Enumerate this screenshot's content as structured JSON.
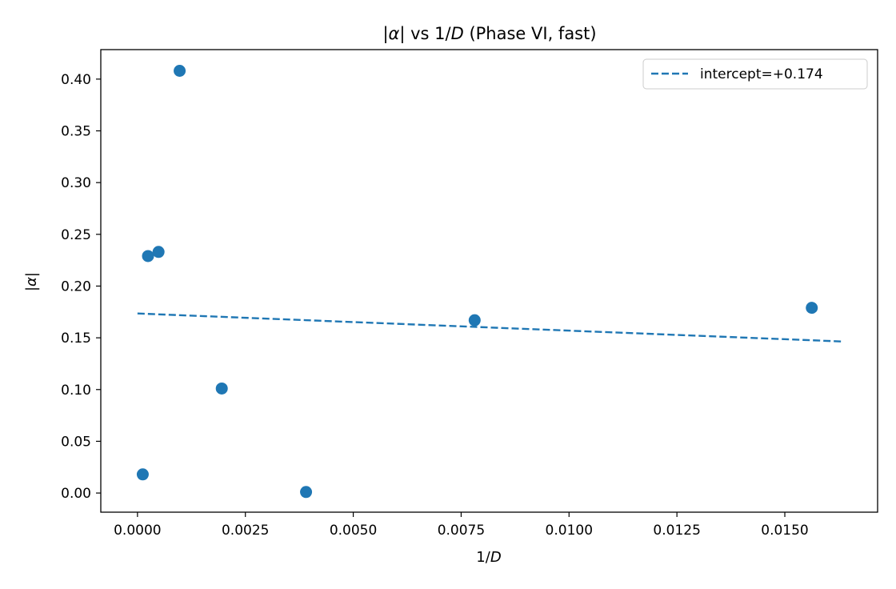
{
  "chart_data": {
    "type": "scatter",
    "title": {
      "prefix": "|",
      "symbol": "α",
      "middle": "| vs 1/",
      "var": "D",
      "suffix": " (Phase VI, fast)"
    },
    "xlabel": {
      "prefix": "1/",
      "var": "D"
    },
    "ylabel": {
      "prefix": "|",
      "symbol": "α",
      "suffix": "|"
    },
    "xlim": [
      -0.00085,
      0.01715
    ],
    "ylim": [
      -0.0185,
      0.4285
    ],
    "xticks": [
      0.0,
      0.0025,
      0.005,
      0.0075,
      0.01,
      0.0125,
      0.015
    ],
    "xtick_labels": [
      "0.0000",
      "0.0025",
      "0.0050",
      "0.0075",
      "0.0100",
      "0.0125",
      "0.0150"
    ],
    "yticks": [
      0.0,
      0.05,
      0.1,
      0.15,
      0.2,
      0.25,
      0.3,
      0.35,
      0.4
    ],
    "ytick_labels": [
      "0.00",
      "0.05",
      "0.10",
      "0.15",
      "0.20",
      "0.25",
      "0.30",
      "0.35",
      "0.40"
    ],
    "grid": false,
    "series": [
      {
        "name": "points",
        "kind": "scatter",
        "color": "#1f77b4",
        "x": [
          0.000122,
          0.000244,
          0.000488,
          0.000977,
          0.001953,
          0.003906,
          0.007813,
          0.015625
        ],
        "y": [
          0.018,
          0.229,
          0.233,
          0.408,
          0.101,
          0.001,
          0.167,
          0.179
        ]
      },
      {
        "name": "intercept=+0.174",
        "kind": "fit-line",
        "style": "dashed",
        "color": "#1f77b4",
        "intercept": 0.174,
        "x_range": [
          0.0,
          0.0163
        ],
        "y_range": [
          0.1735,
          0.1465
        ]
      }
    ],
    "legend": {
      "position": "top-right",
      "entries": [
        "intercept=+0.174"
      ]
    }
  }
}
